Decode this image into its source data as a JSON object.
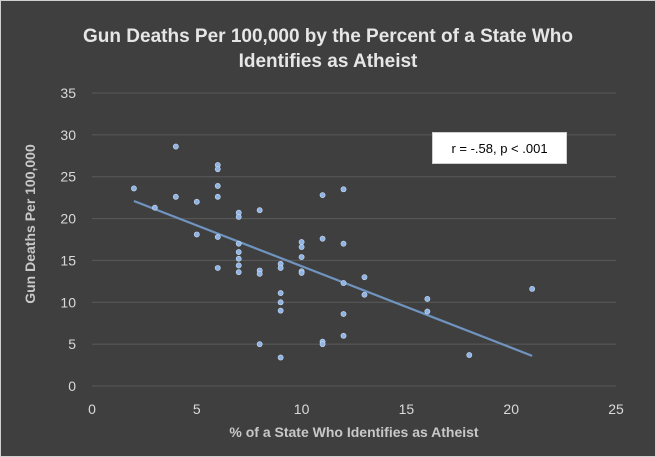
{
  "chart_data": {
    "type": "scatter",
    "title_line1": "Gun Deaths Per 100,000 by the Percent of a State Who",
    "title_line2": "Identifies as Atheist",
    "xlabel": "% of a State Who Identifies as Atheist",
    "ylabel": "Gun Deaths Per 100,000",
    "xlim": [
      0,
      25
    ],
    "ylim": [
      0,
      35
    ],
    "xticks": [
      0,
      5,
      10,
      15,
      20,
      25
    ],
    "yticks": [
      0,
      5,
      10,
      15,
      20,
      25,
      30,
      35
    ],
    "gridlines": "horizontal",
    "annotation": "r = -.58, p < .001",
    "trendline": {
      "x": [
        2,
        21
      ],
      "y": [
        22.1,
        3.6
      ]
    },
    "points": [
      [
        2,
        23.6
      ],
      [
        3,
        21.3
      ],
      [
        4,
        28.6
      ],
      [
        4,
        22.6
      ],
      [
        5,
        22.0
      ],
      [
        5,
        18.1
      ],
      [
        6,
        26.4
      ],
      [
        6,
        25.9
      ],
      [
        6,
        23.9
      ],
      [
        6,
        22.6
      ],
      [
        6,
        17.8
      ],
      [
        6,
        14.1
      ],
      [
        7,
        20.7
      ],
      [
        7,
        20.2
      ],
      [
        7,
        17.0
      ],
      [
        7,
        16.0
      ],
      [
        7,
        15.2
      ],
      [
        7,
        14.4
      ],
      [
        7,
        13.6
      ],
      [
        8,
        21.0
      ],
      [
        8,
        13.8
      ],
      [
        8,
        13.4
      ],
      [
        8,
        5.0
      ],
      [
        9,
        14.6
      ],
      [
        9,
        14.1
      ],
      [
        9,
        11.1
      ],
      [
        9,
        10.0
      ],
      [
        9,
        9.0
      ],
      [
        9,
        3.4
      ],
      [
        10,
        17.2
      ],
      [
        10,
        16.6
      ],
      [
        10,
        15.4
      ],
      [
        10,
        13.7
      ],
      [
        10,
        13.5
      ],
      [
        11,
        22.8
      ],
      [
        11,
        17.6
      ],
      [
        11,
        5.3
      ],
      [
        11,
        5.0
      ],
      [
        12,
        23.5
      ],
      [
        12,
        17.0
      ],
      [
        12,
        12.3
      ],
      [
        12,
        8.6
      ],
      [
        12,
        6.0
      ],
      [
        13,
        13.0
      ],
      [
        13,
        10.9
      ],
      [
        16,
        10.4
      ],
      [
        16,
        8.9
      ],
      [
        18,
        3.7
      ],
      [
        21,
        11.6
      ]
    ]
  },
  "colors": {
    "background": "#3f3f3f",
    "grid": "#5a5a5a",
    "points": "#8fb4e3",
    "trendline": "#7094c0",
    "text": "#d9d9d9"
  }
}
